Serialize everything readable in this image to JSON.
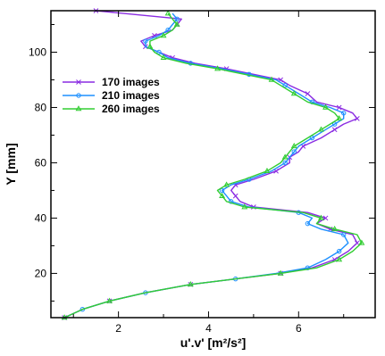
{
  "chart_data": {
    "type": "line",
    "xlabel": "u'.v' [m²/s²]",
    "ylabel": "Y [mm]",
    "xlim": [
      0.5,
      7.7
    ],
    "ylim": [
      4,
      115
    ],
    "xticks": [
      2,
      4,
      6
    ],
    "yticks": [
      20,
      40,
      60,
      80,
      100
    ],
    "grid": false,
    "legend_position": "upper-left",
    "series": [
      {
        "name": "170 images",
        "color": "#8a2be2",
        "marker": "x",
        "points": [
          [
            0.8,
            4
          ],
          [
            1.2,
            7
          ],
          [
            1.8,
            10
          ],
          [
            2.6,
            13
          ],
          [
            3.6,
            16
          ],
          [
            4.6,
            18
          ],
          [
            5.6,
            20
          ],
          [
            6.3,
            22
          ],
          [
            6.8,
            25
          ],
          [
            7.1,
            28
          ],
          [
            7.3,
            31
          ],
          [
            7.2,
            34
          ],
          [
            6.7,
            36
          ],
          [
            6.4,
            38
          ],
          [
            6.6,
            40
          ],
          [
            6.2,
            42
          ],
          [
            5.0,
            44
          ],
          [
            4.7,
            46
          ],
          [
            4.6,
            48
          ],
          [
            4.5,
            50
          ],
          [
            4.6,
            52
          ],
          [
            5.0,
            54
          ],
          [
            5.5,
            57
          ],
          [
            5.8,
            60
          ],
          [
            5.8,
            62
          ],
          [
            6.0,
            64
          ],
          [
            6.1,
            66
          ],
          [
            6.5,
            69
          ],
          [
            6.8,
            72
          ],
          [
            7.0,
            74
          ],
          [
            7.3,
            76
          ],
          [
            7.2,
            78
          ],
          [
            6.9,
            80
          ],
          [
            6.4,
            82
          ],
          [
            6.2,
            85
          ],
          [
            5.8,
            88
          ],
          [
            5.6,
            90
          ],
          [
            5.0,
            92
          ],
          [
            4.4,
            94
          ],
          [
            3.7,
            96
          ],
          [
            3.2,
            98
          ],
          [
            2.9,
            100
          ],
          [
            2.6,
            102
          ],
          [
            2.5,
            104
          ],
          [
            2.8,
            106
          ],
          [
            3.2,
            108
          ],
          [
            3.3,
            110
          ],
          [
            3.4,
            112
          ],
          [
            1.5,
            115
          ]
        ]
      },
      {
        "name": "210 images",
        "color": "#1e90ff",
        "marker": "o",
        "points": [
          [
            0.8,
            4
          ],
          [
            1.2,
            7
          ],
          [
            1.8,
            10
          ],
          [
            2.6,
            13
          ],
          [
            3.6,
            16
          ],
          [
            4.6,
            18
          ],
          [
            5.5,
            20
          ],
          [
            6.2,
            22
          ],
          [
            6.6,
            25
          ],
          [
            6.9,
            28
          ],
          [
            7.1,
            31
          ],
          [
            7.0,
            34
          ],
          [
            6.5,
            36
          ],
          [
            6.2,
            38
          ],
          [
            6.3,
            40
          ],
          [
            6.0,
            42
          ],
          [
            4.9,
            44
          ],
          [
            4.5,
            46
          ],
          [
            4.4,
            48
          ],
          [
            4.3,
            50
          ],
          [
            4.5,
            52
          ],
          [
            4.9,
            54
          ],
          [
            5.4,
            57
          ],
          [
            5.7,
            60
          ],
          [
            5.8,
            62
          ],
          [
            5.9,
            64
          ],
          [
            6.0,
            66
          ],
          [
            6.3,
            69
          ],
          [
            6.6,
            72
          ],
          [
            6.8,
            74
          ],
          [
            7.0,
            76
          ],
          [
            7.0,
            78
          ],
          [
            6.7,
            80
          ],
          [
            6.3,
            82
          ],
          [
            6.0,
            85
          ],
          [
            5.7,
            88
          ],
          [
            5.5,
            90
          ],
          [
            4.9,
            92
          ],
          [
            4.3,
            94
          ],
          [
            3.6,
            96
          ],
          [
            3.1,
            98
          ],
          [
            2.9,
            100
          ],
          [
            2.6,
            102
          ],
          [
            2.6,
            104
          ],
          [
            2.9,
            106
          ],
          [
            3.1,
            108
          ],
          [
            3.2,
            110
          ],
          [
            3.3,
            112
          ],
          [
            3.2,
            114
          ]
        ]
      },
      {
        "name": "260 images",
        "color": "#32cd32",
        "marker": "^",
        "points": [
          [
            0.8,
            4
          ],
          [
            1.2,
            7
          ],
          [
            1.8,
            10
          ],
          [
            2.6,
            13
          ],
          [
            3.6,
            16
          ],
          [
            4.6,
            18
          ],
          [
            5.6,
            20
          ],
          [
            6.4,
            22
          ],
          [
            6.9,
            25
          ],
          [
            7.2,
            28
          ],
          [
            7.4,
            31
          ],
          [
            7.3,
            34
          ],
          [
            6.8,
            36
          ],
          [
            6.4,
            38
          ],
          [
            6.5,
            40
          ],
          [
            6.1,
            42
          ],
          [
            4.8,
            44
          ],
          [
            4.4,
            46
          ],
          [
            4.3,
            48
          ],
          [
            4.2,
            50
          ],
          [
            4.4,
            52
          ],
          [
            4.8,
            54
          ],
          [
            5.3,
            57
          ],
          [
            5.6,
            60
          ],
          [
            5.7,
            62
          ],
          [
            5.8,
            64
          ],
          [
            5.9,
            66
          ],
          [
            6.2,
            69
          ],
          [
            6.5,
            72
          ],
          [
            6.7,
            74
          ],
          [
            6.9,
            76
          ],
          [
            6.8,
            78
          ],
          [
            6.6,
            80
          ],
          [
            6.2,
            82
          ],
          [
            5.9,
            85
          ],
          [
            5.6,
            88
          ],
          [
            5.4,
            90
          ],
          [
            4.8,
            92
          ],
          [
            4.2,
            94
          ],
          [
            3.5,
            96
          ],
          [
            3.0,
            98
          ],
          [
            2.8,
            100
          ],
          [
            2.7,
            102
          ],
          [
            2.7,
            104
          ],
          [
            3.0,
            106
          ],
          [
            3.2,
            108
          ],
          [
            3.3,
            110
          ],
          [
            3.2,
            112
          ],
          [
            3.1,
            114
          ]
        ]
      }
    ]
  }
}
